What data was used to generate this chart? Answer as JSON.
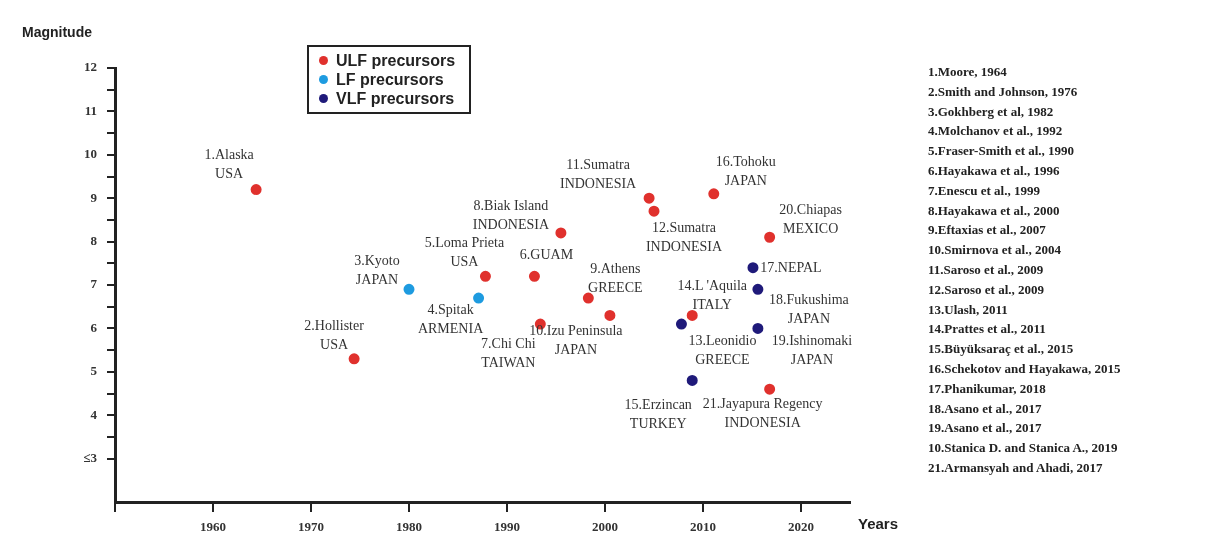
{
  "chart_data": {
    "type": "scatter",
    "xlabel": "Years",
    "ylabel": "Magnitude",
    "xlim": [
      1950,
      2025
    ],
    "xticks": [
      {
        "value": 1950,
        "label": null
      },
      1960,
      1970,
      1980,
      1990,
      2000,
      2010,
      2020
    ],
    "ylim": [
      2,
      12
    ],
    "yticks": [
      {
        "value": 3,
        "label": "≤3"
      },
      {
        "value": 3.5,
        "label": null
      },
      4,
      {
        "value": 4.5,
        "label": null
      },
      5,
      {
        "value": 5.5,
        "label": null
      },
      6,
      {
        "value": 6.5,
        "label": null
      },
      7,
      {
        "value": 7.5,
        "label": null
      },
      8,
      {
        "value": 8.5,
        "label": null
      },
      9,
      {
        "value": 9.5,
        "label": null
      },
      10,
      {
        "value": 10.5,
        "label": null
      },
      11,
      {
        "value": 11.5,
        "label": null
      },
      12
    ],
    "grid": false,
    "legend": "top",
    "marker": "circle",
    "series": [
      {
        "name": "ULF precursors",
        "color": "#e0312d",
        "x": [
          1964.4,
          1974.4,
          1987.8,
          1992.8,
          1993.4,
          1995.5,
          1998.3,
          2000.5,
          2004.5,
          2005.0,
          2008.9,
          2011.1,
          2016.8,
          2016.8
        ],
        "values": [
          9.2,
          5.3,
          7.2,
          7.2,
          6.1,
          8.2,
          6.7,
          6.3,
          9.0,
          8.7,
          6.3,
          9.1,
          8.1,
          4.6
        ]
      },
      {
        "name": "LF precursors",
        "color": "#1e9be0",
        "x": [
          1980.0,
          1987.1
        ],
        "values": [
          6.9,
          6.7
        ]
      },
      {
        "name": "VLF precursors",
        "color": "#1f1a7a",
        "x": [
          2007.8,
          2008.9,
          2015.1,
          2015.6,
          2015.6
        ],
        "values": [
          6.1,
          4.8,
          7.4,
          6.9,
          6.0
        ]
      }
    ],
    "annotations": [
      {
        "text": "1.Alaska\nUSA",
        "x": 1964.4,
        "y": 9.2
      },
      {
        "text": "2.Hollister\nUSA",
        "x": 1974.4,
        "y": 5.3
      },
      {
        "text": "3.Kyoto\nJAPAN",
        "x": 1980.0,
        "y": 6.9
      },
      {
        "text": "4.Spitak\nARMENIA",
        "x": 1987.1,
        "y": 6.7
      },
      {
        "text": "5.Loma Prieta\nUSA",
        "x": 1987.8,
        "y": 7.2
      },
      {
        "text": "6.GUAM",
        "x": 1992.8,
        "y": 7.2
      },
      {
        "text": "7.Chi Chi\nTAIWAN",
        "x": 1993.4,
        "y": 6.1
      },
      {
        "text": "8.Biak Island\nINDONESIA",
        "x": 1995.5,
        "y": 8.2
      },
      {
        "text": "9.Athens\nGREECE",
        "x": 1998.3,
        "y": 6.7
      },
      {
        "text": "10.Izu Peninsula\nJAPAN",
        "x": 2000.5,
        "y": 6.3
      },
      {
        "text": "11.Sumatra\nINDONESIA",
        "x": 2004.5,
        "y": 9.0
      },
      {
        "text": "12.Sumatra\nINDONESIA",
        "x": 2005.0,
        "y": 8.7
      },
      {
        "text": "13.Leonidio\nGREECE",
        "x": 2007.8,
        "y": 6.1
      },
      {
        "text": "14.L 'Aquila\nITALY",
        "x": 2008.9,
        "y": 6.3
      },
      {
        "text": "15.Erzincan\nTURKEY",
        "x": 2008.9,
        "y": 4.8
      },
      {
        "text": "16.Tohoku\nJAPAN",
        "x": 2011.1,
        "y": 9.1
      },
      {
        "text": "17.NEPAL",
        "x": 2015.1,
        "y": 7.4
      },
      {
        "text": "18.Fukushima\nJAPAN",
        "x": 2015.6,
        "y": 6.9
      },
      {
        "text": "19.Ishinomaki\nJAPAN",
        "x": 2015.6,
        "y": 6.0
      },
      {
        "text": "20.Chiapas\nMEXICO",
        "x": 2016.8,
        "y": 8.1
      },
      {
        "text": "21.Jayapura Regency\nINDONESIA",
        "x": 2016.8,
        "y": 4.6
      },
      "1.Moore, 1964",
      "2.Smith and Johnson, 1976",
      "3.Gokhberg et al, 1982",
      "4.Molchanov et al., 1992",
      "5.Fraser-Smith et al., 1990",
      "6.Hayakawa et al., 1996",
      "7.Enescu et al., 1999",
      "8.Hayakawa et al., 2000",
      "9.Eftaxias et al., 2007",
      "10.Smirnova et al., 2004",
      "11.Saroso et al., 2009",
      "12.Saroso et al., 2009",
      "13.Ulash, 2011",
      "14.Prattes et al., 2011",
      "15.Büyüksaraç et al., 2015",
      "16.Schekotov and Hayakawa, 2015",
      "17.Phanikumar, 2018",
      "18.Asano et al., 2017",
      "19.Asano et al., 2017",
      "10.Stanica D. and Stanica A., 2019",
      "21.Armansyah and Ahadi, 2017"
    ]
  }
}
